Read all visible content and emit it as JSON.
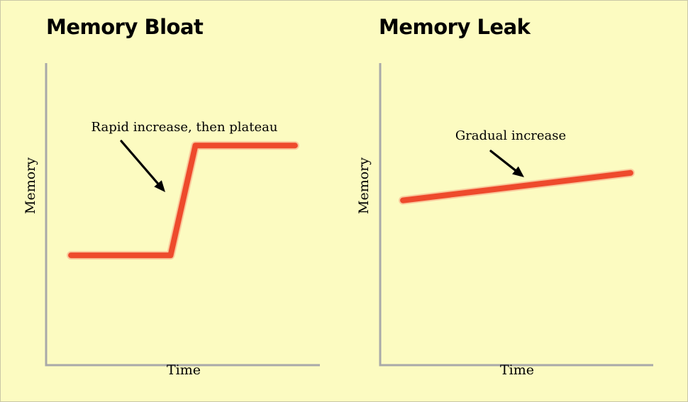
{
  "colors": {
    "background": "#fcfbc1",
    "axis": "#a9a9a9",
    "series": "#ee4a2c"
  },
  "chart_data": [
    {
      "type": "line",
      "title": "Memory Bloat",
      "xlabel": "Time",
      "ylabel": "Memory",
      "grid": false,
      "x": [
        0,
        4,
        5,
        9
      ],
      "y": [
        4,
        4,
        8,
        8
      ],
      "xlim": [
        -1,
        10
      ],
      "ylim": [
        0,
        11
      ],
      "annotation": "Rapid increase, then plateau"
    },
    {
      "type": "line",
      "title": "Memory Leak",
      "xlabel": "Time",
      "ylabel": "Memory",
      "grid": false,
      "x": [
        0,
        10
      ],
      "y": [
        6,
        7
      ],
      "xlim": [
        -1,
        11
      ],
      "ylim": [
        0,
        11
      ],
      "annotation": "Gradual increase"
    }
  ]
}
